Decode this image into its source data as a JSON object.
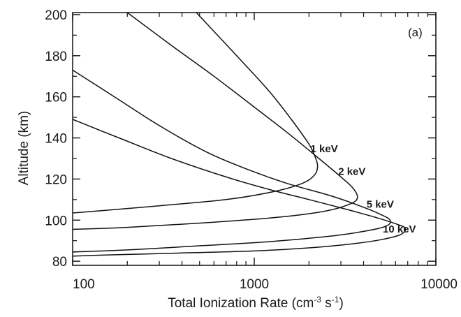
{
  "chart_data": {
    "type": "line",
    "panel_label": "(a)",
    "xlabel": "Total Ionization Rate (cm",
    "xlabel_sup1": "-3",
    "xlabel_mid": " s",
    "xlabel_sup2": "-1",
    "xlabel_end": ")",
    "ylabel": "Altitude (km)",
    "xscale": "log",
    "xlim": [
      100,
      10000
    ],
    "ylim": [
      78,
      201
    ],
    "xticks": [
      {
        "value": 100,
        "label": "100"
      },
      {
        "value": 1000,
        "label": "1000"
      },
      {
        "value": 10000,
        "label": "10000"
      }
    ],
    "yticks": [
      {
        "value": 80,
        "label": "80"
      },
      {
        "value": 100,
        "label": "100"
      },
      {
        "value": 120,
        "label": "120"
      },
      {
        "value": 140,
        "label": "140"
      },
      {
        "value": 160,
        "label": "160"
      },
      {
        "value": 180,
        "label": "180"
      },
      {
        "value": 200,
        "label": "200"
      }
    ],
    "grid": false,
    "series": [
      {
        "name": "1 keV",
        "label_at": [
          2040,
          133
        ],
        "points": [
          [
            480,
            201
          ],
          [
            800,
            180
          ],
          [
            1200,
            163
          ],
          [
            1600,
            149
          ],
          [
            2000,
            137
          ],
          [
            2180,
            130
          ],
          [
            2230,
            126
          ],
          [
            2150,
            122
          ],
          [
            1850,
            118
          ],
          [
            1300,
            114
          ],
          [
            700,
            110
          ],
          [
            300,
            107
          ],
          [
            140,
            104.5
          ],
          [
            100,
            103.5
          ]
        ]
      },
      {
        "name": "2 keV",
        "label_at": [
          2900,
          122
        ],
        "points": [
          [
            200,
            201
          ],
          [
            350,
            185
          ],
          [
            600,
            170
          ],
          [
            1000,
            155
          ],
          [
            1500,
            143
          ],
          [
            2200,
            131
          ],
          [
            3000,
            121
          ],
          [
            3500,
            115.5
          ],
          [
            3700,
            111
          ],
          [
            3400,
            108
          ],
          [
            2500,
            104.5
          ],
          [
            1400,
            101.5
          ],
          [
            600,
            99
          ],
          [
            200,
            96.5
          ],
          [
            100,
            95.5
          ]
        ]
      },
      {
        "name": "5 keV",
        "label_at": [
          4150,
          106
        ],
        "points": [
          [
            100,
            173
          ],
          [
            170,
            160
          ],
          [
            300,
            146
          ],
          [
            550,
            133
          ],
          [
            900,
            125
          ],
          [
            1500,
            118
          ],
          [
            2600,
            112
          ],
          [
            3800,
            107
          ],
          [
            4900,
            103
          ],
          [
            5600,
            100
          ],
          [
            5300,
            97
          ],
          [
            4000,
            94.5
          ],
          [
            2500,
            92
          ],
          [
            1200,
            89.5
          ],
          [
            500,
            87.5
          ],
          [
            200,
            85.5
          ],
          [
            100,
            84.5
          ]
        ]
      },
      {
        "name": "10 keV",
        "label_at": [
          5100,
          94
        ],
        "points": [
          [
            100,
            149
          ],
          [
            180,
            140
          ],
          [
            350,
            130
          ],
          [
            700,
            121
          ],
          [
            1200,
            115
          ],
          [
            2000,
            110
          ],
          [
            3300,
            105
          ],
          [
            4800,
            101
          ],
          [
            6100,
            98
          ],
          [
            6800,
            96
          ],
          [
            6400,
            93
          ],
          [
            5000,
            90.5
          ],
          [
            3500,
            88.5
          ],
          [
            2000,
            86.5
          ],
          [
            1000,
            85
          ],
          [
            400,
            84
          ],
          [
            150,
            83
          ],
          [
            100,
            82.5
          ]
        ]
      }
    ]
  }
}
